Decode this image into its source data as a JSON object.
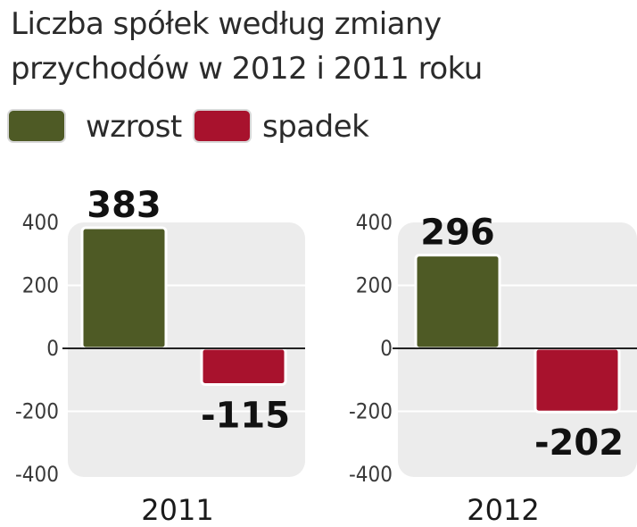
{
  "title": "Liczba spółek według zmiany przychodów w 2012 i 2011 roku",
  "legend": [
    {
      "label": "wzrost",
      "color": "#4e5a25"
    },
    {
      "label": "spadek",
      "color": "#a8122d"
    }
  ],
  "colors": {
    "panel_background": "#ececec",
    "gridline": "#ffffff",
    "zero_line": "#222222",
    "bar_outline": "#ffffff"
  },
  "chart_data": [
    {
      "type": "bar",
      "categories": [
        "wzrost",
        "spadek"
      ],
      "values": [
        383,
        -115
      ],
      "value_labels": [
        "383",
        "-115"
      ],
      "xlabel": "2011",
      "ylabel": "",
      "ylim": [
        -400,
        400
      ],
      "yticks": [
        "400",
        "200",
        "0",
        "-200",
        "-400"
      ],
      "grid": true
    },
    {
      "type": "bar",
      "categories": [
        "wzrost",
        "spadek"
      ],
      "values": [
        296,
        -202
      ],
      "value_labels": [
        "296",
        "-202"
      ],
      "xlabel": "2012",
      "ylabel": "",
      "ylim": [
        -400,
        400
      ],
      "yticks": [
        "400",
        "200",
        "0",
        "-200",
        "-400"
      ],
      "grid": true
    }
  ]
}
